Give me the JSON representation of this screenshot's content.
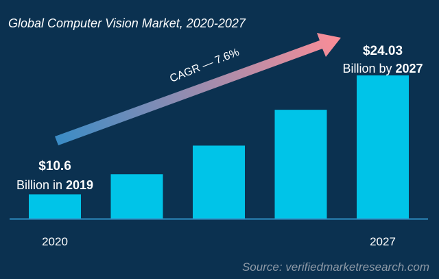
{
  "chart_data": {
    "type": "bar",
    "title": "Global Computer Vision Market, 2020-2027",
    "categories": [
      "2020",
      "",
      "",
      "",
      "2027"
    ],
    "values_relative_percent": [
      17,
      31,
      51,
      76,
      100
    ],
    "xlabel": "",
    "ylabel": "",
    "grid": false,
    "annotations": {
      "start_value": "$10.6",
      "start_text": "Billion in ",
      "start_year": "2019",
      "end_value": "$24.03",
      "end_text": "Billion by ",
      "end_year": "2027",
      "cagr": "CAGR — 7.6%"
    },
    "source": "Source: verifiedmarketresearch.com",
    "colors": {
      "background": "#0b3150",
      "bar": "#00c4e8",
      "baseline": "#2f8fc4",
      "arrow_start": "#3a8cc6",
      "arrow_end": "#fb8d97",
      "source_text": "#8d99a6"
    }
  }
}
